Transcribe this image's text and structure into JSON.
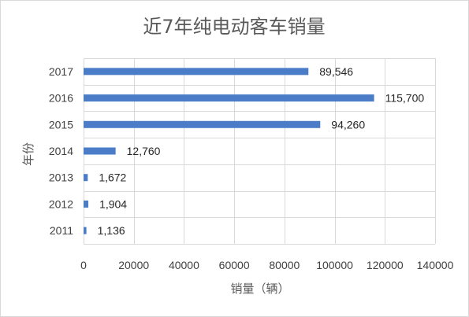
{
  "chart_data": {
    "type": "bar",
    "orientation": "horizontal",
    "title": "近7年纯电动客车销量",
    "xlabel": "销量（辆）",
    "ylabel": "年份",
    "categories": [
      "2011",
      "2012",
      "2013",
      "2014",
      "2015",
      "2016",
      "2017"
    ],
    "values": [
      1136,
      1904,
      1672,
      12760,
      94260,
      115700,
      89546
    ],
    "data_labels": [
      "1,136",
      "1,904",
      "1,672",
      "12,760",
      "94,260",
      "115,700",
      "89,546"
    ],
    "xlim": [
      0,
      140000
    ],
    "xticks": [
      "0",
      "20000",
      "40000",
      "60000",
      "80000",
      "100000",
      "120000",
      "140000"
    ],
    "grid": "vertical",
    "legend": "none",
    "bar_color": "#4a7cc8",
    "grid_color": "#d9d9d9"
  }
}
